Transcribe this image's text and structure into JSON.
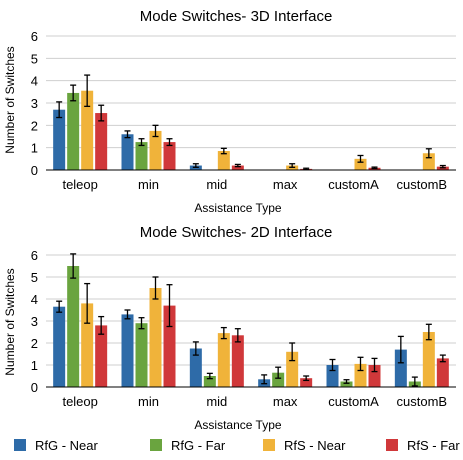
{
  "chart_data": [
    {
      "type": "bar",
      "title": "Mode Switches- 3D Interface",
      "xlabel": "Assistance Type",
      "ylabel": "Number of Switches",
      "ylim": [
        0,
        6
      ],
      "yticks": [
        0,
        1,
        2,
        3,
        4,
        5,
        6
      ],
      "grid": true,
      "categories": [
        "teleop",
        "min",
        "mid",
        "max",
        "customA",
        "customB"
      ],
      "series": [
        {
          "name": "RfG - Near",
          "values": [
            2.7,
            1.6,
            0.2,
            0.0,
            0.0,
            0.0
          ],
          "errors": [
            0.35,
            0.15,
            0.08,
            0.0,
            0.0,
            0.0
          ]
        },
        {
          "name": "RfG - Far",
          "values": [
            3.45,
            1.25,
            0.0,
            0.0,
            0.0,
            0.0
          ],
          "errors": [
            0.35,
            0.15,
            0.0,
            0.0,
            0.0,
            0.0
          ]
        },
        {
          "name": "RfS - Near",
          "values": [
            3.55,
            1.75,
            0.85,
            0.2,
            0.5,
            0.75
          ],
          "errors": [
            0.7,
            0.25,
            0.12,
            0.08,
            0.15,
            0.2
          ]
        },
        {
          "name": "RfS - Far",
          "values": [
            2.55,
            1.25,
            0.2,
            0.05,
            0.1,
            0.15
          ],
          "errors": [
            0.35,
            0.15,
            0.05,
            0.03,
            0.03,
            0.05
          ]
        }
      ]
    },
    {
      "type": "bar",
      "title": "Mode Switches- 2D Interface",
      "xlabel": "Assistance Type",
      "ylabel": "Number of Switches",
      "ylim": [
        0,
        6
      ],
      "yticks": [
        0,
        1,
        2,
        3,
        4,
        5,
        6
      ],
      "grid": true,
      "categories": [
        "teleop",
        "min",
        "mid",
        "max",
        "customA",
        "customB"
      ],
      "series": [
        {
          "name": "RfG - Near",
          "values": [
            3.65,
            3.3,
            1.75,
            0.35,
            1.0,
            1.7
          ],
          "errors": [
            0.25,
            0.2,
            0.3,
            0.2,
            0.25,
            0.6
          ]
        },
        {
          "name": "RfG - Far",
          "values": [
            5.5,
            2.9,
            0.5,
            0.65,
            0.25,
            0.25
          ],
          "errors": [
            0.55,
            0.25,
            0.12,
            0.25,
            0.08,
            0.2
          ]
        },
        {
          "name": "RfS - Near",
          "values": [
            3.8,
            4.5,
            2.45,
            1.6,
            1.05,
            2.5
          ],
          "errors": [
            0.9,
            0.5,
            0.25,
            0.4,
            0.3,
            0.35
          ]
        },
        {
          "name": "RfS - Far",
          "values": [
            2.8,
            3.7,
            2.35,
            0.4,
            1.0,
            1.3
          ],
          "errors": [
            0.4,
            0.95,
            0.3,
            0.1,
            0.3,
            0.15
          ]
        }
      ]
    }
  ],
  "legend": {
    "placement": "bottom",
    "items": [
      {
        "label": "RfG - Near",
        "color": "#2e6ba8"
      },
      {
        "label": "RfG - Far",
        "color": "#6aa43f"
      },
      {
        "label": "RfS - Near",
        "color": "#f0b33a"
      },
      {
        "label": "RfS - Far",
        "color": "#d0383a"
      }
    ]
  }
}
